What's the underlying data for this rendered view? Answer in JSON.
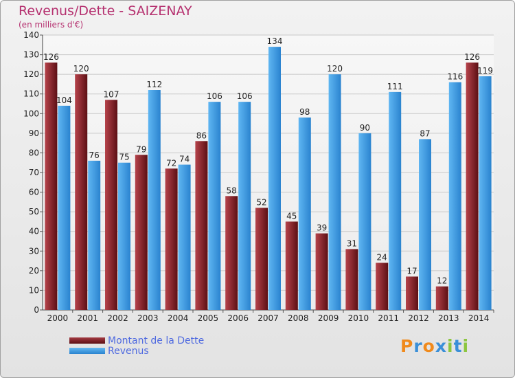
{
  "chart_data": {
    "type": "bar",
    "title": "Revenus/Dette - SAIZENAY",
    "subtitle": "(en milliers d'€)",
    "categories": [
      "2000",
      "2001",
      "2002",
      "2003",
      "2004",
      "2005",
      "2006",
      "2007",
      "2008",
      "2009",
      "2010",
      "2011",
      "2012",
      "2013",
      "2014"
    ],
    "series": [
      {
        "name": "Montant de la Dette",
        "color": "#7a1f24",
        "values": [
          126,
          120,
          107,
          79,
          72,
          86,
          58,
          52,
          45,
          39,
          31,
          24,
          17,
          12,
          126
        ]
      },
      {
        "name": "Revenus",
        "color": "#3a9ae0",
        "values": [
          104,
          76,
          75,
          112,
          74,
          106,
          106,
          134,
          98,
          120,
          90,
          111,
          87,
          116,
          119
        ]
      }
    ],
    "ylim": [
      0,
      140
    ],
    "yticks": [
      0,
      10,
      20,
      30,
      40,
      50,
      60,
      70,
      80,
      90,
      100,
      110,
      120,
      130,
      140
    ],
    "grid": true,
    "legend_position": "bottom-left"
  },
  "logo": {
    "letters": [
      "P",
      "r",
      "o",
      "x",
      "i",
      "t",
      "i"
    ],
    "colors": [
      "#f08a1c",
      "#3a8fd8",
      "#f08a1c",
      "#3a8fd8",
      "#8cc63f",
      "#3a8fd8",
      "#8cc63f"
    ]
  }
}
